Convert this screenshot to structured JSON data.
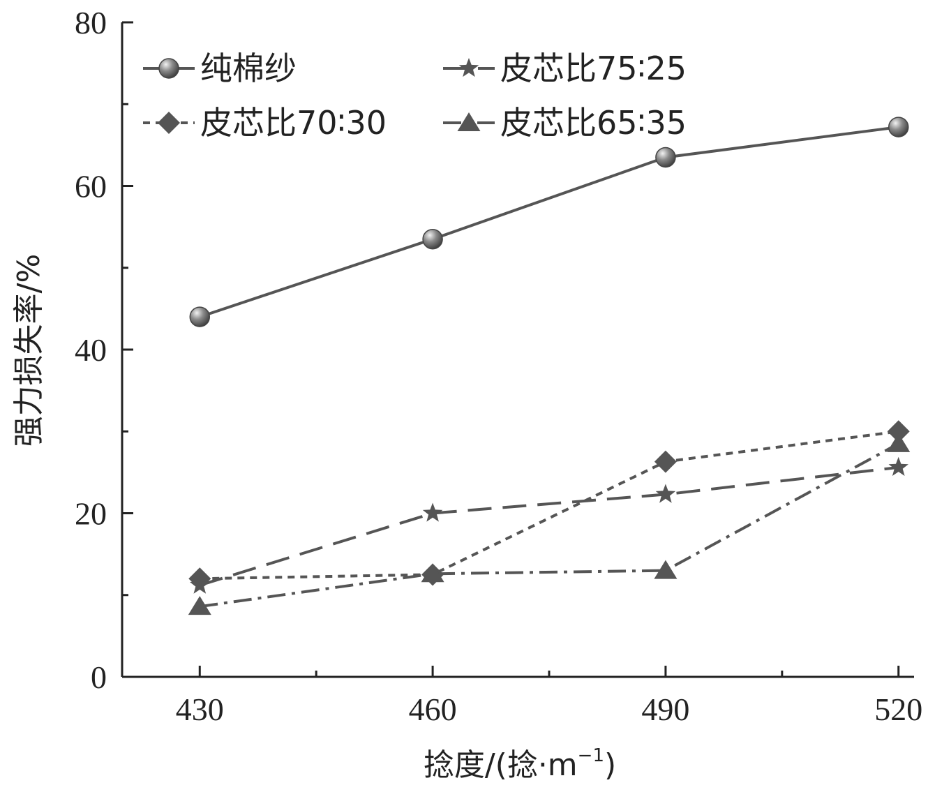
{
  "chart_data": {
    "type": "line",
    "title": "",
    "xlabel": "捻度/(捻·m",
    "xlabel_sup": "−1",
    "xlabel_tail": ")",
    "ylabel": "强力损失率/%",
    "x": [
      430,
      460,
      490,
      520
    ],
    "xlim": [
      420,
      522
    ],
    "ylim": [
      0,
      80
    ],
    "x_ticks": [
      430,
      460,
      490,
      520
    ],
    "x_tick_labels": [
      "430",
      "460",
      "490",
      "520"
    ],
    "y_ticks": [
      0,
      20,
      40,
      60,
      80
    ],
    "y_tick_labels": [
      "0",
      "20",
      "40",
      "60",
      "80"
    ],
    "series": [
      {
        "name": "纯棉纱",
        "values": [
          44.0,
          53.5,
          63.5,
          67.2
        ],
        "marker": "circle",
        "dash": "solid"
      },
      {
        "name": "皮芯比75∶25",
        "values": [
          11.2,
          20.0,
          22.3,
          25.6
        ],
        "marker": "star",
        "dash": "longdash"
      },
      {
        "name": "皮芯比70∶30",
        "values": [
          12.0,
          12.5,
          26.3,
          30.0
        ],
        "marker": "diamond",
        "dash": "shortdash"
      },
      {
        "name": "皮芯比65∶35",
        "values": [
          8.6,
          12.6,
          13.0,
          28.5
        ],
        "marker": "triangle",
        "dash": "dashdot"
      }
    ],
    "legend_position": "top-left",
    "colors": {
      "line": "#555555",
      "axis": "#222222"
    }
  }
}
